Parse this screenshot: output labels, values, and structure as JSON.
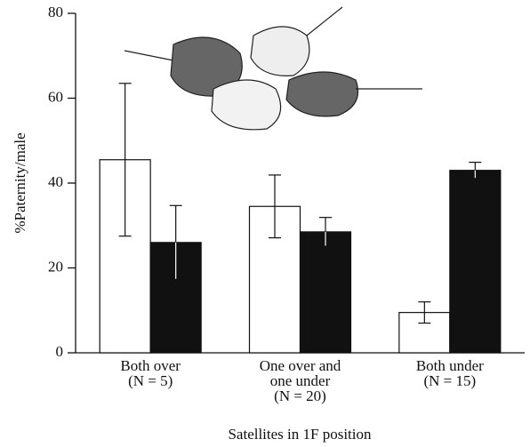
{
  "chart_data": {
    "type": "bar",
    "categories": [
      [
        "Both over",
        "(N = 5)"
      ],
      [
        "One over and",
        "one under",
        "(N = 20)"
      ],
      [
        "Both under",
        "(N = 15)"
      ]
    ],
    "series": [
      {
        "color": "#ffffff",
        "values": [
          45.5,
          34.5,
          9.5
        ],
        "errors": [
          18,
          7.4,
          2.5
        ]
      },
      {
        "color": "#111111",
        "values": [
          26,
          28.5,
          43
        ],
        "errors": [
          8.7,
          3.4,
          1.9
        ]
      }
    ],
    "ylim": [
      0,
      80
    ],
    "yticks": [
      0,
      20,
      40,
      60,
      80
    ],
    "y_label": "%Paternity/male",
    "x_label": "Satellites in 1F position"
  }
}
